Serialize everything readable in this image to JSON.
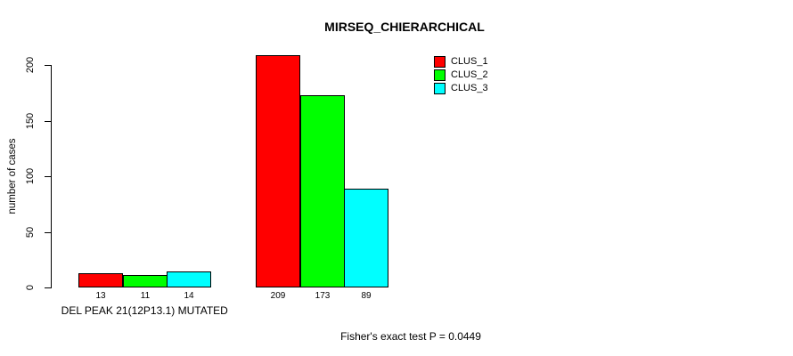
{
  "title": "MIRSEQ_CHIERARCHICAL",
  "footnote": "Fisher's exact test P = 0.0449",
  "chart_data": {
    "type": "bar",
    "title": "MIRSEQ_CHIERARCHICAL",
    "ylabel": "number of cases",
    "xlabel": "",
    "ylim": [
      0,
      200
    ],
    "yticks": [
      0,
      50,
      100,
      150,
      200
    ],
    "grid": false,
    "show_values": true,
    "legend_position": "top-right",
    "categories": [
      "DEL PEAK 21(12P13.1) MUTATED",
      ""
    ],
    "series": [
      {
        "name": "CLUS_1",
        "color": "#ff0000",
        "values": [
          13,
          209
        ]
      },
      {
        "name": "CLUS_2",
        "color": "#00ff00",
        "values": [
          11,
          173
        ]
      },
      {
        "name": "CLUS_3",
        "color": "#00ffff",
        "values": [
          14,
          89
        ]
      }
    ],
    "footnote": "Fisher's exact test P = 0.0449"
  }
}
